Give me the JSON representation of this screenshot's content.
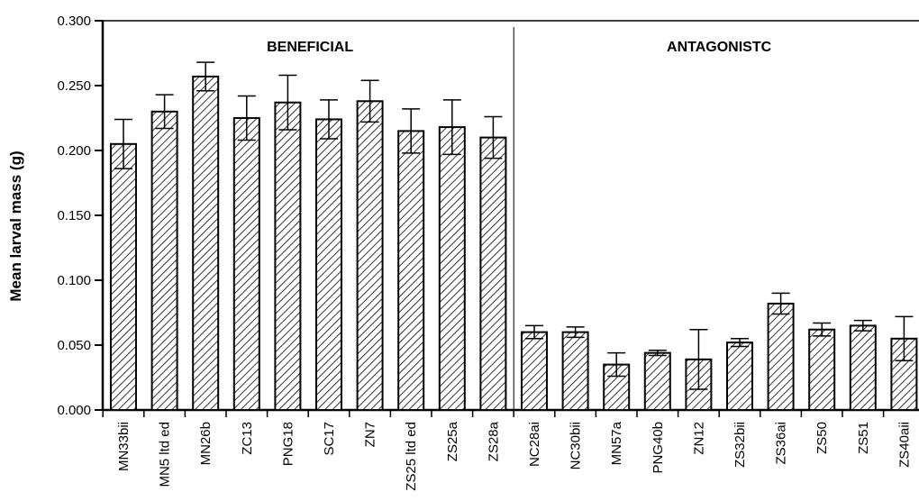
{
  "chart_data": {
    "type": "bar",
    "title": "",
    "xlabel": "",
    "ylabel": "Mean larval mass (g)",
    "ylim": [
      0,
      0.3
    ],
    "yticks": [
      "0.000",
      "0.050",
      "0.100",
      "0.150",
      "0.200",
      "0.250",
      "0.300"
    ],
    "grid": false,
    "legend": "none",
    "bar_fill": "diagonal-hatch",
    "bar_color": "#000000",
    "groups": [
      {
        "label": "BENEFICIAL",
        "start": 0,
        "end": 9
      },
      {
        "label": "ANTAGONISTC",
        "start": 10,
        "end": 19
      }
    ],
    "categories": [
      "MN33bii",
      "MN5 ltd ed",
      "MN26b",
      "ZC13",
      "PNG18",
      "SC17",
      "ZN7",
      "ZS25 ltd ed",
      "ZS25a",
      "ZS28a",
      "NC28ai",
      "NC30bii",
      "MN57a",
      "PNG40b",
      "ZN12",
      "ZS32bii",
      "ZS36ai",
      "ZS50",
      "ZS51",
      "ZS40aii"
    ],
    "values": [
      0.205,
      0.23,
      0.257,
      0.225,
      0.237,
      0.224,
      0.238,
      0.215,
      0.218,
      0.21,
      0.06,
      0.06,
      0.035,
      0.044,
      0.039,
      0.052,
      0.082,
      0.062,
      0.065,
      0.055
    ],
    "errors": [
      0.019,
      0.013,
      0.011,
      0.017,
      0.021,
      0.015,
      0.016,
      0.017,
      0.021,
      0.016,
      0.005,
      0.004,
      0.009,
      0.002,
      0.023,
      0.003,
      0.008,
      0.005,
      0.004,
      0.017
    ]
  }
}
